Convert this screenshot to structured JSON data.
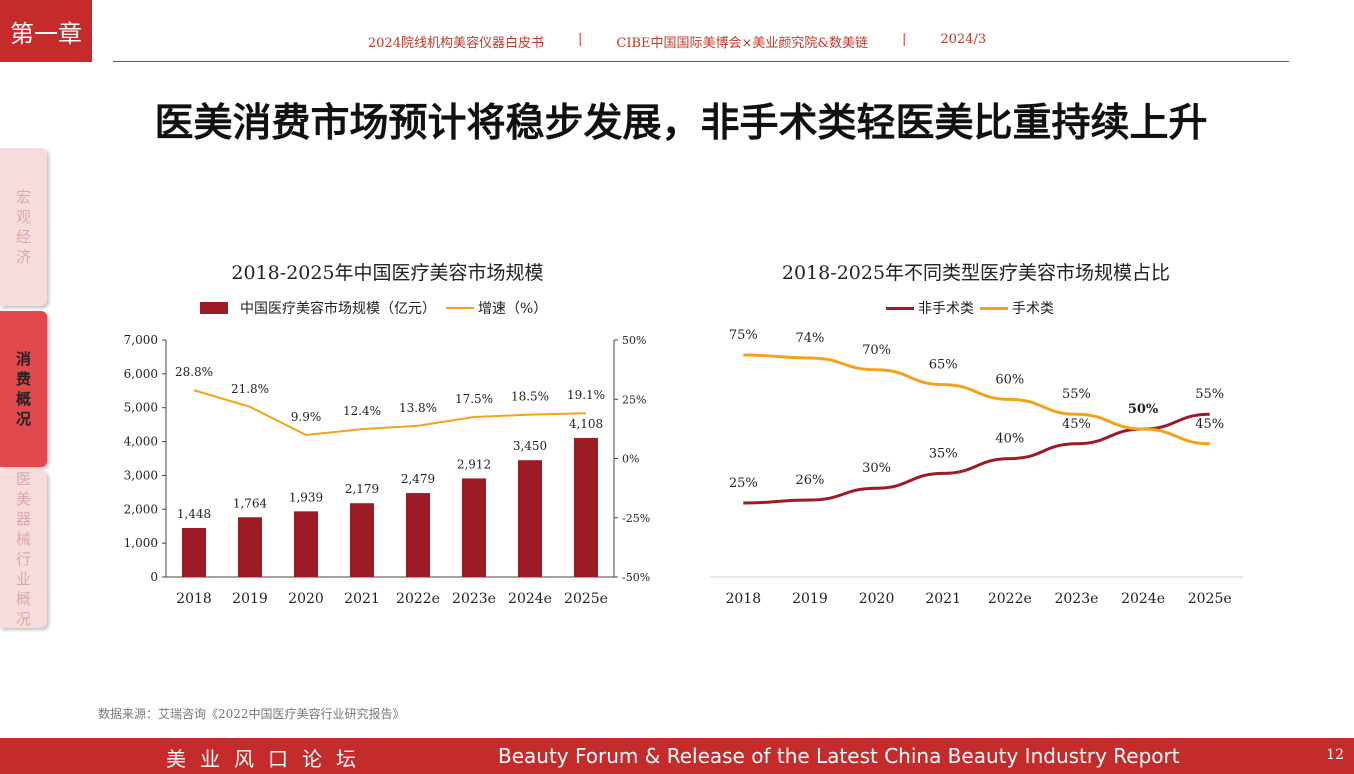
{
  "chapter_label": "第一章",
  "header": {
    "report": "2024院线机构美容仪器白皮书",
    "sep1": "|",
    "org": "CIBE中国国际美博会×美业颜究院&数美链",
    "sep2": "|",
    "date": "2024/3"
  },
  "title": "医美消费市场预计将稳步发展，非手术类轻医美比重持续上升",
  "side_tabs": {
    "macro": [
      "宏",
      "观",
      "经",
      "济"
    ],
    "consume": [
      "消",
      "费",
      "概",
      "况"
    ],
    "device": [
      "医",
      "美",
      "器",
      "械",
      "行",
      "业",
      "概",
      "况"
    ]
  },
  "chart_data": [
    {
      "type": "bar",
      "title": "2018-2025年中国医疗美容市场规模",
      "categories": [
        "2018",
        "2019",
        "2020",
        "2021",
        "2022e",
        "2023e",
        "2024e",
        "2025e"
      ],
      "series": [
        {
          "name": "中国医疗美容市场规模（亿元）",
          "type": "bar",
          "color": "#9b1c24",
          "values": [
            1448,
            1764,
            1939,
            2179,
            2479,
            2912,
            3450,
            4108
          ],
          "labels": [
            "1,448",
            "1,764",
            "1,939",
            "2,179",
            "2,479",
            "2,912",
            "3,450",
            "4,108"
          ]
        },
        {
          "name": "增速（%）",
          "type": "line",
          "axis": "right",
          "color": "#f2a31b",
          "values": [
            28.8,
            21.8,
            9.9,
            12.4,
            13.8,
            17.5,
            18.5,
            19.1
          ],
          "labels": [
            "28.8%",
            "21.8%",
            "9.9%",
            "12.4%",
            "13.8%",
            "17.5%",
            "18.5%",
            "19.1%"
          ]
        }
      ],
      "ylim": [
        0,
        7000
      ],
      "yticks": [
        "0",
        "1,000",
        "2,000",
        "3,000",
        "4,000",
        "5,000",
        "6,000",
        "7,000"
      ],
      "y2lim": [
        -50,
        50
      ],
      "y2ticks": [
        "-50%",
        "-25%",
        "0%",
        "25%",
        "50%"
      ],
      "legend": "top"
    },
    {
      "type": "line",
      "title": "2018-2025年不同类型医疗美容市场规模占比",
      "categories": [
        "2018",
        "2019",
        "2020",
        "2021",
        "2022e",
        "2023e",
        "2024e",
        "2025e"
      ],
      "series": [
        {
          "name": "非手术类",
          "color": "#9b1c24",
          "values": [
            25,
            26,
            30,
            35,
            40,
            45,
            50,
            55
          ],
          "labels": [
            "25%",
            "26%",
            "30%",
            "35%",
            "40%",
            "45%",
            "50%",
            "55%"
          ]
        },
        {
          "name": "手术类",
          "color": "#f2a31b",
          "values": [
            75,
            74,
            70,
            65,
            60,
            55,
            50,
            45
          ],
          "labels": [
            "75%",
            "74%",
            "70%",
            "65%",
            "60%",
            "55%",
            "",
            "45%"
          ]
        }
      ],
      "ylim": [
        0,
        100
      ],
      "legend": "top"
    }
  ],
  "source": "数据来源：艾瑞咨询《2022中国医疗美容行业研究报告》",
  "footer": {
    "left": "美业风口论坛",
    "right": "Beauty Forum & Release of the Latest China Beauty Industry Report",
    "page": "12"
  }
}
